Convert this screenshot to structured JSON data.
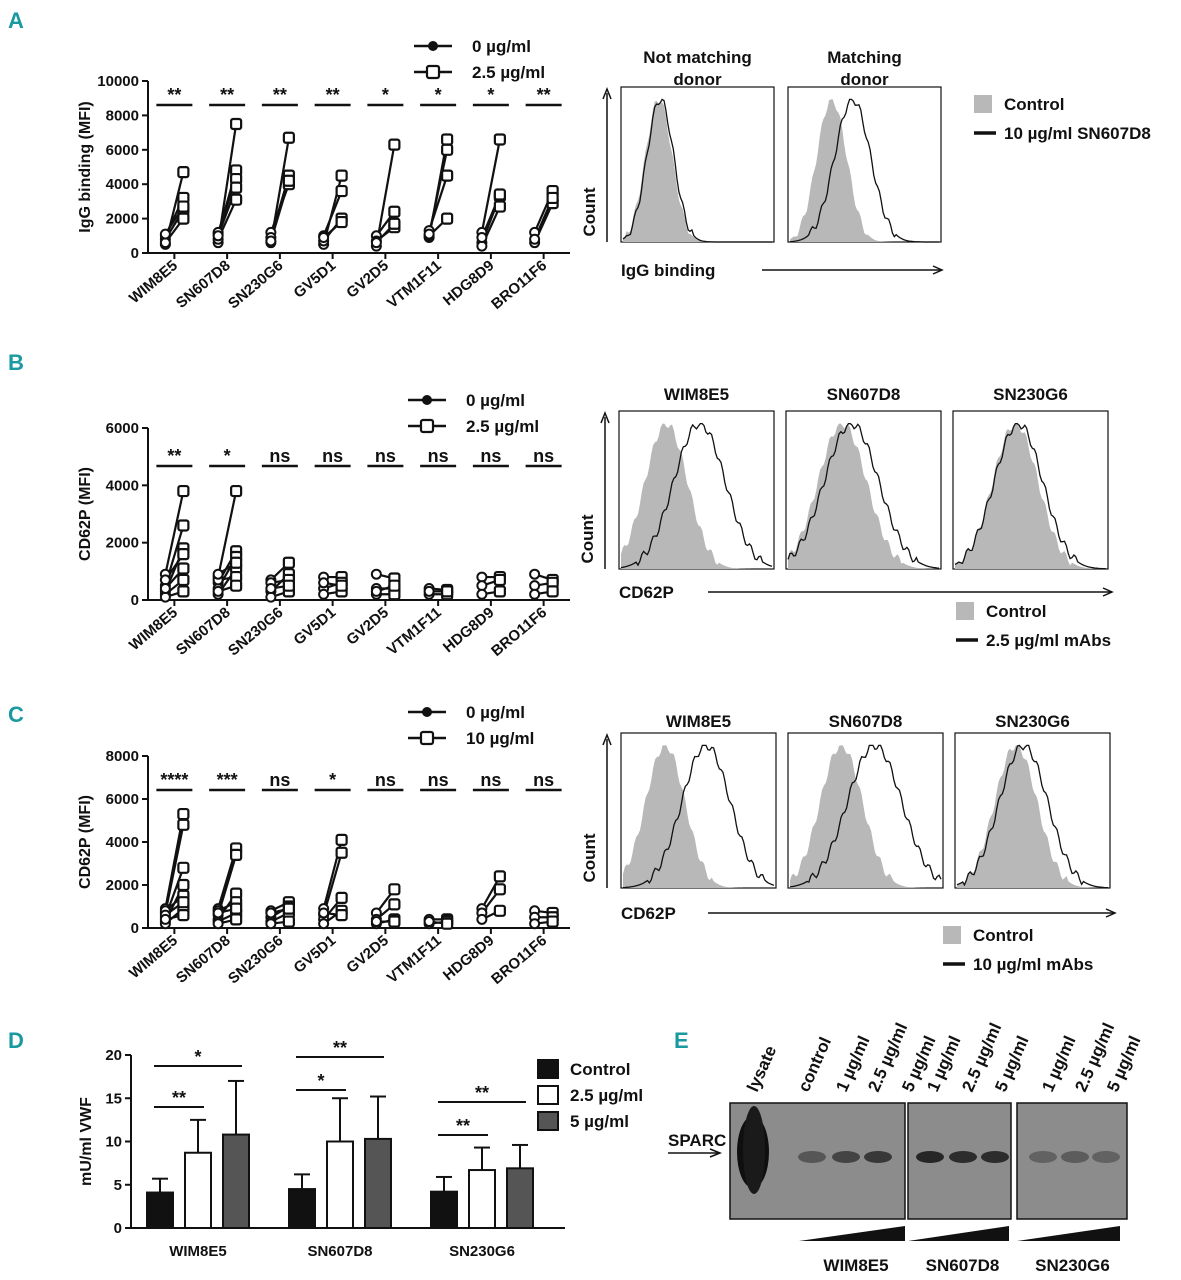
{
  "panels": {
    "A": "A",
    "B": "B",
    "C": "C",
    "D": "D",
    "E": "E"
  },
  "colors": {
    "ink": "#111111",
    "grey_fill": "#b8b8b8",
    "dark_bar": "#555555",
    "label": "#1a9aa0",
    "blot_bg": "#8c8c8c"
  },
  "chart_data": [
    {
      "id": "A",
      "type": "scatter",
      "title": "",
      "ylabel": "IgG binding (MFI)",
      "yticks": [
        "0",
        "2000",
        "4000",
        "6000",
        "8000",
        "10000"
      ],
      "ylim": [
        0,
        10000
      ],
      "categories": [
        "WIM8E5",
        "SN607D8",
        "SN230G6",
        "GV5D1",
        "GV2D5",
        "VTM1F11",
        "HDG8D9",
        "BRO11F6"
      ],
      "significance": [
        "**",
        "**",
        "**",
        "**",
        "*",
        "*",
        "*",
        "**"
      ],
      "legend": [
        "0 µg/ml",
        "2.5 µg/ml"
      ],
      "pairs": [
        [
          [
            500,
            4700
          ],
          [
            1000,
            3200
          ],
          [
            800,
            2500
          ],
          [
            600,
            2000
          ],
          [
            1100,
            2700
          ]
        ],
        [
          [
            600,
            7500
          ],
          [
            1100,
            4800
          ],
          [
            800,
            3100
          ],
          [
            1200,
            4300
          ],
          [
            1000,
            3800
          ]
        ],
        [
          [
            600,
            6700
          ],
          [
            1200,
            4000
          ],
          [
            900,
            4500
          ],
          [
            700,
            4200
          ]
        ],
        [
          [
            500,
            4500
          ],
          [
            1000,
            3600
          ],
          [
            700,
            2000
          ],
          [
            900,
            1800
          ]
        ],
        [
          [
            400,
            6300
          ],
          [
            1000,
            2400
          ],
          [
            700,
            1500
          ],
          [
            600,
            1700
          ]
        ],
        [
          [
            900,
            6600
          ],
          [
            1300,
            4500
          ],
          [
            1000,
            2000
          ],
          [
            1100,
            6000
          ]
        ],
        [
          [
            1200,
            6600
          ],
          [
            600,
            3300
          ],
          [
            400,
            2700
          ],
          [
            900,
            3400
          ]
        ],
        [
          [
            1200,
            3600
          ],
          [
            600,
            2900
          ],
          [
            800,
            3200
          ]
        ]
      ]
    },
    {
      "id": "B",
      "type": "scatter",
      "ylabel": "CD62P (MFI)",
      "yticks": [
        "0",
        "2000",
        "4000",
        "6000"
      ],
      "ylim": [
        0,
        6000
      ],
      "categories": [
        "WIM8E5",
        "SN607D8",
        "SN230G6",
        "GV5D1",
        "GV2D5",
        "VTM1F11",
        "HDG8D9",
        "BRO11F6"
      ],
      "significance": [
        "**",
        "*",
        "ns",
        "ns",
        "ns",
        "ns",
        "ns",
        "ns"
      ],
      "legend": [
        "0 µg/ml",
        "2.5 µg/ml"
      ],
      "pairs": [
        [
          [
            900,
            3800
          ],
          [
            500,
            2600
          ],
          [
            300,
            1800
          ],
          [
            700,
            1600
          ],
          [
            200,
            700
          ],
          [
            100,
            300
          ],
          [
            400,
            1100
          ]
        ],
        [
          [
            800,
            3800
          ],
          [
            600,
            1700
          ],
          [
            400,
            1500
          ],
          [
            200,
            1100
          ],
          [
            700,
            800
          ],
          [
            300,
            500
          ],
          [
            900,
            1300
          ]
        ],
        [
          [
            700,
            1300
          ],
          [
            300,
            900
          ],
          [
            600,
            700
          ],
          [
            100,
            300
          ],
          [
            400,
            500
          ]
        ],
        [
          [
            800,
            800
          ],
          [
            400,
            600
          ],
          [
            200,
            300
          ],
          [
            600,
            500
          ]
        ],
        [
          [
            900,
            750
          ],
          [
            400,
            400
          ],
          [
            200,
            200
          ],
          [
            300,
            500
          ]
        ],
        [
          [
            400,
            350
          ],
          [
            200,
            200
          ],
          [
            300,
            300
          ]
        ],
        [
          [
            800,
            800
          ],
          [
            500,
            700
          ],
          [
            200,
            300
          ]
        ],
        [
          [
            900,
            700
          ],
          [
            500,
            600
          ],
          [
            200,
            300
          ]
        ]
      ]
    },
    {
      "id": "C",
      "type": "scatter",
      "ylabel": "CD62P (MFI)",
      "yticks": [
        "0",
        "2000",
        "4000",
        "6000",
        "8000"
      ],
      "ylim": [
        0,
        8000
      ],
      "categories": [
        "WIM8E5",
        "SN607D8",
        "SN230G6",
        "GV5D1",
        "GV2D5",
        "VTM1F11",
        "HDG8D9",
        "BRO11F6"
      ],
      "significance": [
        "****",
        "***",
        "ns",
        "*",
        "ns",
        "ns",
        "ns",
        "ns"
      ],
      "legend": [
        "0 µg/ml",
        "10 µg/ml"
      ],
      "pairs": [
        [
          [
            900,
            5300
          ],
          [
            700,
            4800
          ],
          [
            500,
            2800
          ],
          [
            300,
            2000
          ],
          [
            800,
            1500
          ],
          [
            200,
            900
          ],
          [
            600,
            1200
          ],
          [
            400,
            600
          ]
        ],
        [
          [
            900,
            3700
          ],
          [
            600,
            3400
          ],
          [
            400,
            1600
          ],
          [
            800,
            1200
          ],
          [
            300,
            700
          ],
          [
            200,
            400
          ],
          [
            700,
            900
          ]
        ],
        [
          [
            800,
            1200
          ],
          [
            500,
            1000
          ],
          [
            300,
            700
          ],
          [
            700,
            900
          ],
          [
            200,
            300
          ]
        ],
        [
          [
            900,
            4100
          ],
          [
            600,
            3500
          ],
          [
            400,
            1400
          ],
          [
            200,
            800
          ],
          [
            700,
            600
          ]
        ],
        [
          [
            700,
            1800
          ],
          [
            400,
            1100
          ],
          [
            200,
            400
          ],
          [
            300,
            300
          ]
        ],
        [
          [
            400,
            400
          ],
          [
            200,
            300
          ],
          [
            300,
            200
          ]
        ],
        [
          [
            900,
            2400
          ],
          [
            700,
            1800
          ],
          [
            400,
            800
          ]
        ],
        [
          [
            800,
            700
          ],
          [
            500,
            500
          ],
          [
            200,
            300
          ]
        ]
      ]
    },
    {
      "id": "D",
      "type": "bar",
      "ylabel": "mU/ml VWF",
      "yticks": [
        "0",
        "5",
        "10",
        "15",
        "20"
      ],
      "ylim": [
        0,
        20
      ],
      "categories": [
        "WIM8E5",
        "SN607D8",
        "SN230G6"
      ],
      "series": [
        {
          "name": "Control",
          "values": [
            4.1,
            4.5,
            4.2
          ],
          "errors": [
            1.6,
            1.7,
            1.7
          ]
        },
        {
          "name": "2.5 µg/ml",
          "values": [
            8.7,
            10.0,
            6.7
          ],
          "errors": [
            3.8,
            5.0,
            2.6
          ]
        },
        {
          "name": "5 µg/ml",
          "values": [
            10.8,
            10.3,
            6.9
          ],
          "errors": [
            6.2,
            4.9,
            2.7
          ]
        }
      ],
      "significance": [
        {
          "group": 0,
          "from": 0,
          "to": 1,
          "label": "**"
        },
        {
          "group": 0,
          "from": 0,
          "to": 2,
          "label": "*"
        },
        {
          "group": 1,
          "from": 0,
          "to": 1,
          "label": "*"
        },
        {
          "group": 1,
          "from": 0,
          "to": 2,
          "label": "**"
        },
        {
          "group": 2,
          "from": 0,
          "to": 1,
          "label": "**"
        },
        {
          "group": 2,
          "from": 0,
          "to": 2,
          "label": "**"
        }
      ]
    }
  ],
  "flow": {
    "A": {
      "titles": [
        "Not matching\ndonor",
        "Matching\ndonor"
      ],
      "ylabel": "Count",
      "xlabel": "IgG binding",
      "legend": [
        "Control",
        "10 µg/ml SN607D8"
      ]
    },
    "B": {
      "titles": [
        "WIM8E5",
        "SN607D8",
        "SN230G6"
      ],
      "ylabel": "Count",
      "xlabel": "CD62P",
      "legend": [
        "Control",
        "2.5 µg/ml mAbs"
      ]
    },
    "C": {
      "titles": [
        "WIM8E5",
        "SN607D8",
        "SN230G6"
      ],
      "ylabel": "Count",
      "xlabel": "CD62P",
      "legend": [
        "Control",
        "10 µg/ml mAbs"
      ]
    }
  },
  "blot": {
    "lanes": [
      "lysate",
      "control",
      "1 µg/ml",
      "2.5 µg/ml",
      "5 µg/ml",
      "1 µg/ml",
      "2.5 µg/ml",
      "5 µg/ml",
      "1 µg/ml",
      "2.5 µg/ml",
      "5 µg/ml"
    ],
    "band_label": "SPARC",
    "groups": [
      "WIM8E5",
      "SN607D8",
      "SN230G6"
    ]
  }
}
